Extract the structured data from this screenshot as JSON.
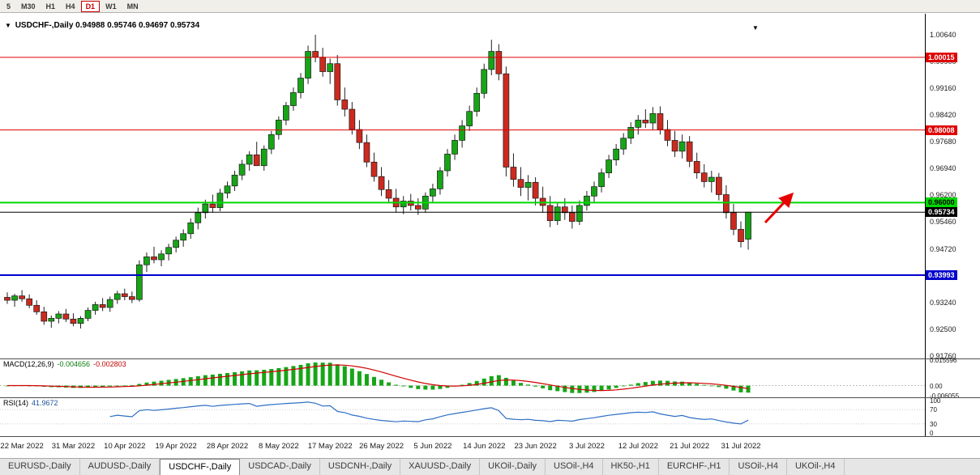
{
  "toolbar": {
    "timeframes": [
      {
        "label": "5",
        "active": false
      },
      {
        "label": "M30",
        "active": false
      },
      {
        "label": "H1",
        "active": false
      },
      {
        "label": "H4",
        "active": false
      },
      {
        "label": "D1",
        "active": true
      },
      {
        "label": "W1",
        "active": false
      },
      {
        "label": "MN",
        "active": false
      }
    ]
  },
  "chart": {
    "dropdown_glyph": "▼",
    "shift_marker_glyph": "▼"
  },
  "indicators": {
    "macd": {
      "label": "MACD(12,26,9)",
      "value_main": "-0.004656",
      "value_signal": "-0.002803",
      "axis_labels": [
        "0.015596",
        "0.00",
        "-0.006055"
      ],
      "axis_values": [
        0.015596,
        0,
        -0.006055
      ]
    },
    "rsi": {
      "label": "RSI(14)",
      "value": "41.9672",
      "levels": [
        100,
        70,
        30,
        0
      ]
    }
  },
  "chart_data": {
    "type": "candlestick",
    "title": "USDCHF-,Daily",
    "ohlc_line": {
      "open": "0.94988",
      "high": "0.95746",
      "low": "0.94697",
      "close": "0.95734"
    },
    "ylim": [
      0.9169,
      1.0122
    ],
    "y_ticks": [
      1.0064,
      0.999,
      0.9916,
      0.9842,
      0.9768,
      0.9694,
      0.962,
      0.9546,
      0.9472,
      0.9398,
      0.9324,
      0.925,
      0.9176
    ],
    "hlines": [
      {
        "value": 1.00015,
        "label": "1.00015",
        "color": "#e00000",
        "text": "#ffffff",
        "width": 1
      },
      {
        "value": 0.98008,
        "label": "0.98008",
        "color": "#e00000",
        "text": "#ffffff",
        "width": 1
      },
      {
        "value": 0.96,
        "label": "0.96000",
        "color": "#00d800",
        "text": "#000000",
        "width": 2
      },
      {
        "value": 0.95734,
        "label": "0.95734",
        "color": "#000000",
        "text": "#ffffff",
        "width": 1
      },
      {
        "value": 0.93993,
        "label": "0.93993",
        "color": "#0000cc",
        "text": "#ffffff",
        "width": 2
      }
    ],
    "x_labels": [
      "22 Mar 2022",
      "31 Mar 2022",
      "10 Apr 2022",
      "19 Apr 2022",
      "28 Apr 2022",
      "8 May 2022",
      "17 May 2022",
      "26 May 2022",
      "5 Jun 2022",
      "14 Jun 2022",
      "23 Jun 2022",
      "3 Jul 2022",
      "12 Jul 2022",
      "21 Jul 2022",
      "31 Jul 2022"
    ],
    "label_start_index": 2,
    "label_step": 7,
    "up_color": "#17a517",
    "down_color": "#cc2a1f",
    "wick_color": "#222222",
    "macd": {
      "fast": 12,
      "slow": 26,
      "signal": 9,
      "hist_color": "#17a517",
      "signal_color": "#d00000"
    },
    "rsi": {
      "period": 14,
      "color": "#2f6fc4"
    },
    "annotations": [
      {
        "type": "arrow",
        "x1": 944,
        "y1": 258,
        "x2": 977,
        "y2": 223,
        "color": "#e60000",
        "width": 3
      }
    ],
    "candles": [
      [
        0.9338,
        0.9352,
        0.932,
        0.933
      ],
      [
        0.933,
        0.9348,
        0.9312,
        0.9342
      ],
      [
        0.9342,
        0.9358,
        0.9326,
        0.9334
      ],
      [
        0.9334,
        0.9346,
        0.9308,
        0.9316
      ],
      [
        0.9316,
        0.933,
        0.929,
        0.9298
      ],
      [
        0.9298,
        0.9312,
        0.9262,
        0.9272
      ],
      [
        0.9272,
        0.9288,
        0.9254,
        0.928
      ],
      [
        0.928,
        0.93,
        0.9266,
        0.9292
      ],
      [
        0.9292,
        0.9306,
        0.927,
        0.9278
      ],
      [
        0.9278,
        0.9294,
        0.9258,
        0.9266
      ],
      [
        0.9266,
        0.9286,
        0.9252,
        0.928
      ],
      [
        0.928,
        0.931,
        0.9272,
        0.9302
      ],
      [
        0.9302,
        0.9326,
        0.929,
        0.9318
      ],
      [
        0.9318,
        0.9336,
        0.93,
        0.931
      ],
      [
        0.931,
        0.934,
        0.9298,
        0.9332
      ],
      [
        0.9332,
        0.9356,
        0.932,
        0.9348
      ],
      [
        0.9348,
        0.9362,
        0.933,
        0.934
      ],
      [
        0.934,
        0.9354,
        0.9322,
        0.9332
      ],
      [
        0.9332,
        0.944,
        0.9326,
        0.9428
      ],
      [
        0.9428,
        0.9462,
        0.9408,
        0.945
      ],
      [
        0.945,
        0.9478,
        0.9432,
        0.9442
      ],
      [
        0.9442,
        0.9468,
        0.9424,
        0.9458
      ],
      [
        0.9458,
        0.9486,
        0.944,
        0.9476
      ],
      [
        0.9476,
        0.9506,
        0.9462,
        0.9496
      ],
      [
        0.9496,
        0.9526,
        0.9478,
        0.9514
      ],
      [
        0.9514,
        0.9556,
        0.95,
        0.9544
      ],
      [
        0.9544,
        0.9586,
        0.9526,
        0.9572
      ],
      [
        0.9572,
        0.9608,
        0.9556,
        0.9596
      ],
      [
        0.9596,
        0.9622,
        0.9572,
        0.9586
      ],
      [
        0.9586,
        0.9638,
        0.9576,
        0.9626
      ],
      [
        0.9626,
        0.9658,
        0.9612,
        0.9646
      ],
      [
        0.9646,
        0.9688,
        0.9632,
        0.9676
      ],
      [
        0.9676,
        0.9718,
        0.9662,
        0.9706
      ],
      [
        0.9706,
        0.9742,
        0.9688,
        0.9732
      ],
      [
        0.9732,
        0.9768,
        0.9712,
        0.9702
      ],
      [
        0.9702,
        0.9758,
        0.9688,
        0.9748
      ],
      [
        0.9748,
        0.9798,
        0.9734,
        0.9788
      ],
      [
        0.9788,
        0.9838,
        0.9774,
        0.9828
      ],
      [
        0.9828,
        0.9878,
        0.9814,
        0.9868
      ],
      [
        0.9868,
        0.9918,
        0.9854,
        0.9904
      ],
      [
        0.9904,
        0.9958,
        0.9888,
        0.9944
      ],
      [
        0.9944,
        1.0034,
        0.9928,
        1.0018
      ],
      [
        1.0018,
        1.0064,
        0.9988,
        1.0002
      ],
      [
        1.0002,
        1.0028,
        0.9948,
        0.9962
      ],
      [
        0.9962,
        0.9998,
        0.9928,
        0.9984
      ],
      [
        0.9984,
        1.0008,
        0.9868,
        0.9884
      ],
      [
        0.9884,
        0.9918,
        0.9838,
        0.9858
      ],
      [
        0.9858,
        0.9878,
        0.9788,
        0.9802
      ],
      [
        0.9802,
        0.9828,
        0.9748,
        0.9766
      ],
      [
        0.9766,
        0.9788,
        0.9698,
        0.9712
      ],
      [
        0.9712,
        0.9738,
        0.9658,
        0.9672
      ],
      [
        0.9672,
        0.9698,
        0.9618,
        0.9636
      ],
      [
        0.9636,
        0.9662,
        0.9598,
        0.9612
      ],
      [
        0.9612,
        0.9638,
        0.9572,
        0.9588
      ],
      [
        0.9588,
        0.9618,
        0.9568,
        0.9604
      ],
      [
        0.9604,
        0.9624,
        0.9578,
        0.9592
      ],
      [
        0.9592,
        0.9612,
        0.9566,
        0.9582
      ],
      [
        0.9582,
        0.9628,
        0.9572,
        0.9618
      ],
      [
        0.9618,
        0.9652,
        0.9602,
        0.9638
      ],
      [
        0.9638,
        0.9698,
        0.9622,
        0.9688
      ],
      [
        0.9688,
        0.9748,
        0.9672,
        0.9734
      ],
      [
        0.9734,
        0.9788,
        0.9718,
        0.9772
      ],
      [
        0.9772,
        0.9828,
        0.9752,
        0.9812
      ],
      [
        0.9812,
        0.9868,
        0.9798,
        0.9852
      ],
      [
        0.9852,
        0.9918,
        0.9838,
        0.9902
      ],
      [
        0.9902,
        0.9984,
        0.9888,
        0.9968
      ],
      [
        0.9968,
        1.005,
        0.9952,
        1.0018
      ],
      [
        1.0018,
        1.0038,
        0.9938,
        0.9956
      ],
      [
        0.9956,
        0.9976,
        0.9672,
        0.9698
      ],
      [
        0.9698,
        0.9736,
        0.9644,
        0.9664
      ],
      [
        0.9664,
        0.9698,
        0.9618,
        0.9642
      ],
      [
        0.9642,
        0.9676,
        0.9606,
        0.9656
      ],
      [
        0.9656,
        0.967,
        0.9592,
        0.9612
      ],
      [
        0.9612,
        0.9644,
        0.9572,
        0.9592
      ],
      [
        0.9592,
        0.9618,
        0.9532,
        0.955
      ],
      [
        0.955,
        0.9602,
        0.9538,
        0.9588
      ],
      [
        0.9588,
        0.9612,
        0.9552,
        0.9572
      ],
      [
        0.9572,
        0.9592,
        0.9528,
        0.9548
      ],
      [
        0.9548,
        0.9606,
        0.9538,
        0.9592
      ],
      [
        0.9592,
        0.9632,
        0.9578,
        0.9618
      ],
      [
        0.9618,
        0.9658,
        0.9602,
        0.9644
      ],
      [
        0.9644,
        0.9694,
        0.9628,
        0.9682
      ],
      [
        0.9682,
        0.9732,
        0.9668,
        0.9718
      ],
      [
        0.9718,
        0.9762,
        0.9702,
        0.9748
      ],
      [
        0.9748,
        0.9792,
        0.9732,
        0.9778
      ],
      [
        0.9778,
        0.9822,
        0.9762,
        0.9808
      ],
      [
        0.9808,
        0.9842,
        0.9788,
        0.9828
      ],
      [
        0.9828,
        0.9858,
        0.9806,
        0.982
      ],
      [
        0.982,
        0.9864,
        0.98,
        0.9846
      ],
      [
        0.9846,
        0.9866,
        0.9788,
        0.9802
      ],
      [
        0.9802,
        0.9828,
        0.9756,
        0.9772
      ],
      [
        0.9772,
        0.9798,
        0.9726,
        0.9742
      ],
      [
        0.9742,
        0.9788,
        0.9722,
        0.9768
      ],
      [
        0.9768,
        0.9784,
        0.9698,
        0.9714
      ],
      [
        0.9714,
        0.9738,
        0.9666,
        0.9682
      ],
      [
        0.9682,
        0.9706,
        0.9642,
        0.9658
      ],
      [
        0.9658,
        0.9688,
        0.9628,
        0.967
      ],
      [
        0.967,
        0.9682,
        0.9606,
        0.9622
      ],
      [
        0.9622,
        0.9648,
        0.9556,
        0.9572
      ],
      [
        0.9572,
        0.9596,
        0.951,
        0.9526
      ],
      [
        0.9526,
        0.9548,
        0.9476,
        0.9492
      ],
      [
        0.94988,
        0.95746,
        0.94697,
        0.95734
      ]
    ]
  },
  "tabbar": {
    "tabs": [
      {
        "label": "EURUSD-,Daily",
        "active": false
      },
      {
        "label": "AUDUSD-,Daily",
        "active": false
      },
      {
        "label": "USDCHF-,Daily",
        "active": true
      },
      {
        "label": "USDCAD-,Daily",
        "active": false
      },
      {
        "label": "USDCNH-,Daily",
        "active": false
      },
      {
        "label": "XAUUSD-,Daily",
        "active": false
      },
      {
        "label": "UKOil-,Daily",
        "active": false
      },
      {
        "label": "USOil-,H4",
        "active": false
      },
      {
        "label": "HK50-,H1",
        "active": false
      },
      {
        "label": "EURCHF-,H1",
        "active": false
      },
      {
        "label": "USOil-,H4",
        "active": false
      },
      {
        "label": "UKOil-,H4",
        "active": false
      }
    ]
  }
}
